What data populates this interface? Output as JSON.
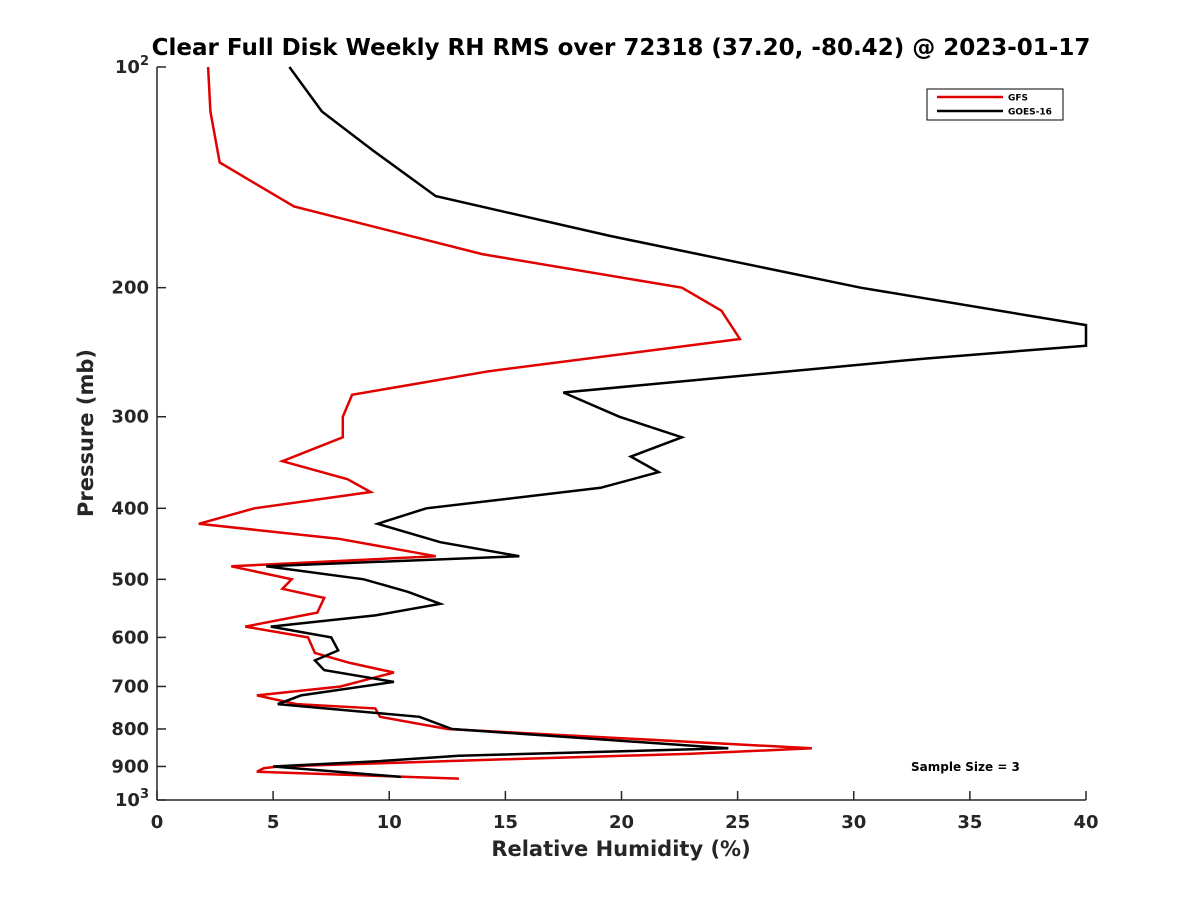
{
  "chart_data": {
    "type": "line",
    "title": "Clear Full Disk Weekly RH RMS over 72318 (37.20, -80.42) @ 2023-01-17",
    "xlabel": "Relative Humidity (%)",
    "ylabel": "Pressure (mb)",
    "xlim": [
      0,
      40
    ],
    "ylim": [
      100,
      1000
    ],
    "yscale": "log",
    "y_reversed": true,
    "x_ticks": [
      "0",
      "5",
      "10",
      "15",
      "20",
      "25",
      "30",
      "35",
      "40"
    ],
    "y_ticks": [
      {
        "value": 100,
        "label": "10",
        "sup": "2"
      },
      {
        "value": 200,
        "label": "200",
        "sup": ""
      },
      {
        "value": 300,
        "label": "300",
        "sup": ""
      },
      {
        "value": 400,
        "label": "400",
        "sup": ""
      },
      {
        "value": 500,
        "label": "500",
        "sup": ""
      },
      {
        "value": 600,
        "label": "600",
        "sup": ""
      },
      {
        "value": 700,
        "label": "700",
        "sup": ""
      },
      {
        "value": 800,
        "label": "800",
        "sup": ""
      },
      {
        "value": 900,
        "label": "900",
        "sup": ""
      },
      {
        "value": 1000,
        "label": "10",
        "sup": "3"
      }
    ],
    "legend_position": "top-right",
    "annotation": "Sample Size = 3",
    "series": [
      {
        "name": "GFS",
        "color": "#e00000",
        "points": [
          [
            2.2,
            100
          ],
          [
            2.3,
            115
          ],
          [
            2.7,
            135
          ],
          [
            5.9,
            155
          ],
          [
            14.0,
            180
          ],
          [
            22.6,
            200
          ],
          [
            24.3,
            215
          ],
          [
            25.1,
            235
          ],
          [
            14.3,
            260
          ],
          [
            8.4,
            280
          ],
          [
            8.0,
            300
          ],
          [
            8.0,
            320
          ],
          [
            5.4,
            345
          ],
          [
            8.2,
            365
          ],
          [
            9.2,
            380
          ],
          [
            4.2,
            400
          ],
          [
            1.8,
            420
          ],
          [
            7.8,
            440
          ],
          [
            12.0,
            465
          ],
          [
            3.2,
            480
          ],
          [
            5.8,
            500
          ],
          [
            5.4,
            515
          ],
          [
            7.2,
            530
          ],
          [
            6.9,
            555
          ],
          [
            3.8,
            580
          ],
          [
            6.5,
            600
          ],
          [
            6.8,
            630
          ],
          [
            8.3,
            650
          ],
          [
            10.2,
            670
          ],
          [
            7.9,
            700
          ],
          [
            4.3,
            720
          ],
          [
            6.0,
            740
          ],
          [
            9.4,
            750
          ],
          [
            9.6,
            770
          ],
          [
            12.5,
            800
          ],
          [
            28.2,
            850
          ],
          [
            23.0,
            865
          ],
          [
            15.0,
            880
          ],
          [
            5.2,
            900
          ],
          [
            4.6,
            905
          ],
          [
            4.3,
            915
          ],
          [
            13.0,
            935
          ]
        ]
      },
      {
        "name": "GOES-16",
        "color": "#000000",
        "points": [
          [
            5.7,
            100
          ],
          [
            7.1,
            115
          ],
          [
            9.3,
            130
          ],
          [
            12.0,
            150
          ],
          [
            19.5,
            170
          ],
          [
            30.3,
            200
          ],
          [
            40.0,
            225
          ],
          [
            40.0,
            240
          ],
          [
            33.0,
            250
          ],
          [
            17.5,
            278
          ],
          [
            19.9,
            300
          ],
          [
            22.6,
            320
          ],
          [
            20.4,
            340
          ],
          [
            21.6,
            357
          ],
          [
            19.1,
            375
          ],
          [
            11.6,
            400
          ],
          [
            9.5,
            420
          ],
          [
            12.2,
            445
          ],
          [
            15.6,
            465
          ],
          [
            4.7,
            480
          ],
          [
            8.9,
            500
          ],
          [
            10.8,
            520
          ],
          [
            12.2,
            540
          ],
          [
            9.4,
            560
          ],
          [
            4.9,
            580
          ],
          [
            7.5,
            600
          ],
          [
            7.8,
            625
          ],
          [
            6.8,
            645
          ],
          [
            7.2,
            665
          ],
          [
            10.2,
            690
          ],
          [
            6.2,
            720
          ],
          [
            5.2,
            740
          ],
          [
            11.3,
            770
          ],
          [
            12.7,
            800
          ],
          [
            24.6,
            850
          ],
          [
            13.0,
            870
          ],
          [
            9.6,
            885
          ],
          [
            5.0,
            900
          ],
          [
            10.5,
            930
          ]
        ]
      }
    ]
  }
}
